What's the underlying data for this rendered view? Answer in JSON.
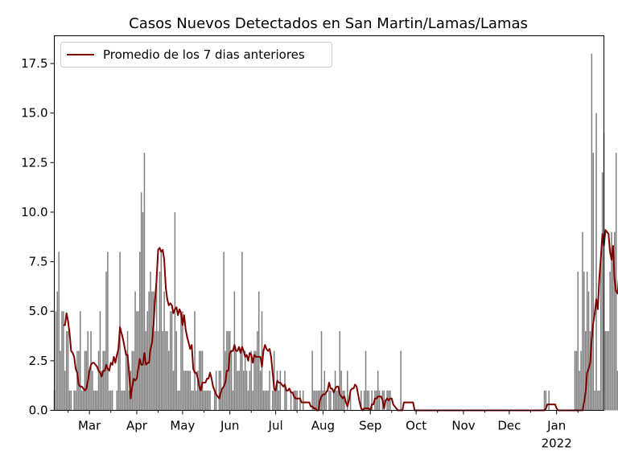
{
  "chart_data": {
    "type": "bar",
    "title": "Casos Nuevos Detectados en San Martin/Lamas/Lamas",
    "xlabel": "",
    "ylabel": "",
    "x_range": [
      "2021-02-06",
      "2022-02-01"
    ],
    "ylim": [
      0,
      18.9
    ],
    "y_ticks": [
      0.0,
      2.5,
      5.0,
      7.5,
      10.0,
      12.5,
      15.0,
      17.5
    ],
    "y_tick_labels": [
      "0.0",
      "2.5",
      "5.0",
      "7.5",
      "10.0",
      "12.5",
      "15.0",
      "17.5"
    ],
    "x_ticks": [
      {
        "date": "2021-03-01",
        "label": "Mar",
        "sublabel": ""
      },
      {
        "date": "2021-04-01",
        "label": "Apr",
        "sublabel": ""
      },
      {
        "date": "2021-05-01",
        "label": "May",
        "sublabel": ""
      },
      {
        "date": "2021-06-01",
        "label": "Jun",
        "sublabel": ""
      },
      {
        "date": "2021-07-01",
        "label": "Jul",
        "sublabel": ""
      },
      {
        "date": "2021-08-01",
        "label": "Aug",
        "sublabel": ""
      },
      {
        "date": "2021-09-01",
        "label": "Sep",
        "sublabel": ""
      },
      {
        "date": "2021-10-01",
        "label": "Oct",
        "sublabel": ""
      },
      {
        "date": "2021-11-01",
        "label": "Nov",
        "sublabel": ""
      },
      {
        "date": "2021-12-01",
        "label": "Dec",
        "sublabel": ""
      },
      {
        "date": "2022-01-01",
        "label": "Jan",
        "sublabel": "2022"
      }
    ],
    "grid": false,
    "legend_position": "top-left",
    "bar_color": "#808080",
    "line_color": "#800000",
    "series": [
      {
        "name": "Casos Nuevos",
        "kind": "bar",
        "start_date": "2021-02-06",
        "values": [
          1,
          5,
          6,
          8,
          3,
          5,
          5,
          2,
          4,
          4,
          1,
          1,
          0,
          1,
          1,
          3,
          3,
          5,
          1,
          1,
          3,
          3,
          4,
          2,
          4,
          2,
          1,
          1,
          1,
          3,
          5,
          2,
          3,
          3,
          7,
          8,
          1,
          1,
          1,
          0,
          0,
          1,
          3,
          8,
          1,
          1,
          1,
          3,
          4,
          1,
          2,
          3,
          3,
          6,
          5,
          5,
          8,
          11,
          10,
          13,
          4,
          5,
          6,
          7,
          6,
          6,
          4,
          7,
          4,
          7,
          8,
          4,
          6,
          4,
          4,
          3,
          5,
          5,
          2,
          10,
          4,
          1,
          1,
          5,
          5,
          2,
          2,
          2,
          2,
          2,
          1,
          1,
          5,
          1,
          2,
          3,
          3,
          3,
          1,
          1,
          1,
          1,
          1,
          0,
          0,
          1,
          2,
          0,
          2,
          2,
          1,
          8,
          3,
          4,
          4,
          4,
          3,
          1,
          6,
          3,
          2,
          2,
          3,
          8,
          2,
          3,
          2,
          1,
          2,
          3,
          1,
          3,
          3,
          4,
          6,
          2,
          5,
          1,
          1,
          1,
          1,
          2,
          0,
          1,
          3,
          1,
          2,
          1,
          2,
          0,
          0,
          2,
          1,
          0,
          0,
          1,
          0,
          1,
          1,
          1,
          0,
          1,
          0,
          1,
          0,
          0,
          0,
          0,
          0,
          3,
          1,
          1,
          1,
          1,
          1,
          4,
          1,
          2,
          1,
          0,
          1,
          1,
          0,
          1,
          2,
          1,
          1,
          4,
          2,
          1,
          1,
          0,
          2,
          0,
          1,
          0,
          0,
          0,
          0,
          0,
          0,
          1,
          0,
          1,
          3,
          1,
          1,
          0,
          1,
          0,
          1,
          1,
          2,
          1,
          0,
          1,
          1,
          0,
          1,
          1,
          1,
          0,
          0,
          0,
          0,
          0,
          0,
          3,
          0,
          0,
          0,
          0,
          0,
          0,
          0,
          0,
          0,
          0,
          0,
          0,
          0,
          0,
          0,
          0,
          0,
          0,
          0,
          0,
          0,
          0,
          0,
          0,
          0,
          0,
          0,
          0,
          0,
          0,
          0,
          0,
          0,
          0,
          0,
          0,
          0,
          0,
          0,
          0,
          0,
          0,
          0,
          0,
          0,
          0,
          0,
          0,
          0,
          0,
          0,
          0,
          0,
          0,
          0,
          0,
          0,
          0,
          0,
          0,
          0,
          0,
          0,
          0,
          0,
          0,
          0,
          0,
          0,
          0,
          0,
          0,
          0,
          0,
          0,
          0,
          0,
          0,
          0,
          0,
          0,
          0,
          0,
          0,
          0,
          0,
          0,
          0,
          0,
          0,
          0,
          0,
          0,
          1,
          1,
          0,
          1,
          0,
          0,
          0,
          0,
          0,
          0,
          0,
          0,
          0,
          0,
          0,
          0,
          0,
          0,
          0,
          0,
          3,
          3,
          7,
          2,
          3,
          9,
          7,
          4,
          7,
          6,
          4,
          18,
          13,
          1,
          15,
          1,
          1,
          8,
          12,
          14,
          4,
          4,
          4,
          7,
          9,
          8,
          9,
          13,
          2,
          2
        ]
      },
      {
        "name": "Promedio de los 7 dias anteriores",
        "kind": "line",
        "start_date": "2021-02-06",
        "values": [
          null,
          null,
          null,
          null,
          null,
          null,
          4.3,
          4.3,
          4.9,
          4.5,
          3.9,
          3.0,
          2.9,
          2.7,
          2.1,
          1.9,
          1.3,
          1.2,
          1.2,
          1.1,
          1.0,
          1.1,
          1.5,
          2.0,
          2.3,
          2.4,
          2.4,
          2.3,
          2.2,
          2.0,
          1.9,
          1.7,
          2.0,
          2.0,
          2.3,
          2.1,
          2.0,
          2.4,
          2.3,
          2.7,
          2.4,
          2.8,
          3.1,
          4.2,
          3.9,
          3.6,
          3.2,
          2.8,
          2.8,
          1.9,
          0.6,
          1.2,
          1.6,
          1.5,
          1.6,
          2.1,
          2.6,
          2.3,
          2.3,
          2.9,
          2.3,
          2.4,
          2.4,
          3.1,
          3.4,
          4.3,
          5.6,
          6.6,
          8.1,
          8.2,
          8.0,
          8.1,
          7.6,
          6.2,
          5.6,
          5.3,
          5.4,
          5.3,
          4.9,
          5.1,
          5.2,
          4.8,
          5.1,
          4.9,
          4.3,
          4.8,
          4.1,
          3.7,
          3.4,
          3.1,
          3.3,
          2.1,
          1.9,
          1.9,
          1.6,
          1.2,
          1.0,
          1.4,
          1.4,
          1.4,
          1.6,
          1.6,
          1.9,
          1.6,
          1.2,
          1.0,
          0.8,
          0.7,
          0.6,
          0.9,
          1.1,
          1.2,
          1.4,
          2.0,
          2.0,
          2.9,
          3.0,
          3.0,
          3.3,
          3.0,
          3.0,
          3.2,
          2.9,
          3.2,
          3.0,
          2.7,
          2.8,
          2.5,
          2.9,
          2.8,
          2.4,
          2.8,
          2.7,
          2.7,
          2.7,
          2.7,
          2.2,
          3.0,
          3.3,
          3.1,
          3.0,
          3.1,
          2.7,
          1.9,
          1.1,
          1.0,
          1.5,
          1.4,
          1.4,
          1.3,
          1.2,
          1.3,
          1.0,
          1.0,
          1.1,
          0.9,
          0.9,
          0.7,
          0.6,
          0.6,
          0.6,
          0.6,
          0.4,
          0.4,
          0.4,
          0.4,
          0.4,
          0.4,
          0.2,
          0.2,
          0.1,
          0.1,
          0.0,
          0.0,
          0.5,
          0.7,
          0.8,
          0.8,
          0.9,
          1.0,
          1.4,
          1.1,
          1.1,
          0.9,
          1.1,
          1.2,
          1.2,
          0.8,
          0.7,
          0.6,
          0.7,
          0.4,
          0.2,
          0.5,
          1.0,
          1.1,
          1.1,
          1.3,
          1.2,
          0.8,
          0.4,
          0.1,
          0.0,
          0.1,
          0.1,
          0.1,
          0.1,
          0.0,
          0.3,
          0.3,
          0.6,
          0.6,
          0.7,
          0.7,
          0.7,
          0.5,
          0.1,
          0.5,
          0.6,
          0.5,
          0.6,
          0.6,
          0.3,
          0.2,
          0.1,
          0.0,
          0.0,
          0.0,
          0.0,
          0.4,
          0.4,
          0.4,
          0.4,
          0.4,
          0.4,
          0.4,
          0.0,
          0.0,
          0.0,
          0.0,
          0.0,
          0.0,
          0.0,
          0.0,
          0.0,
          0.0,
          0.0,
          0.0,
          0.0,
          0.0,
          0.0,
          0.0,
          0.0,
          0.0,
          0.0,
          0.0,
          0.0,
          0.0,
          0.0,
          0.0,
          0.0,
          0.0,
          0.0,
          0.0,
          0.0,
          0.0,
          0.0,
          0.0,
          0.0,
          0.0,
          0.0,
          0.0,
          0.0,
          0.0,
          0.0,
          0.0,
          0.0,
          0.0,
          0.0,
          0.0,
          0.0,
          0.0,
          0.0,
          0.0,
          0.0,
          0.0,
          0.0,
          0.0,
          0.0,
          0.0,
          0.0,
          0.0,
          0.0,
          0.0,
          0.0,
          0.0,
          0.0,
          0.0,
          0.0,
          0.0,
          0.0,
          0.0,
          0.0,
          0.0,
          0.0,
          0.0,
          0.0,
          0.0,
          0.0,
          0.0,
          0.0,
          0.0,
          0.0,
          0.0,
          0.0,
          0.0,
          0.0,
          0.0,
          0.0,
          0.0,
          0.0,
          0.0,
          0.1,
          0.3,
          0.3,
          0.3,
          0.3,
          0.3,
          0.3,
          0.1,
          0.0,
          0.0,
          0.0,
          0.0,
          0.0,
          0.0,
          0.0,
          0.0,
          0.0,
          0.0,
          0.0,
          0.0,
          0.0,
          0.0,
          0.0,
          0.0,
          0.0,
          0.4,
          0.9,
          1.9,
          2.1,
          2.4,
          3.6,
          4.4,
          4.9,
          5.6,
          5.1,
          6.7,
          7.7,
          8.9,
          8.3,
          9.1,
          9.0,
          8.9,
          8.0,
          7.6,
          8.3,
          6.6,
          6.0,
          5.9,
          6.9,
          5.6,
          6.9,
          6.9,
          6.6
        ]
      }
    ]
  }
}
